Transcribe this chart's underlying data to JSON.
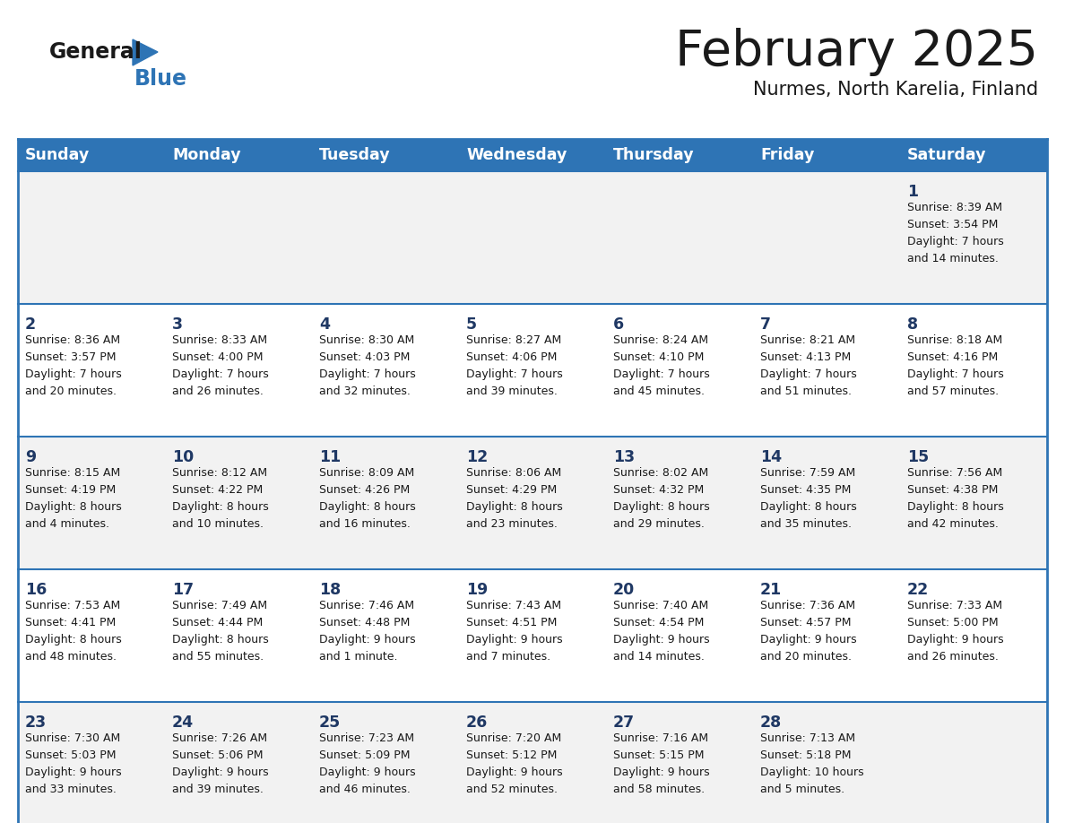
{
  "title": "February 2025",
  "subtitle": "Nurmes, North Karelia, Finland",
  "days_of_week": [
    "Sunday",
    "Monday",
    "Tuesday",
    "Wednesday",
    "Thursday",
    "Friday",
    "Saturday"
  ],
  "header_bg": "#2E74B5",
  "header_text": "#FFFFFF",
  "row_bg_even": "#F2F2F2",
  "row_bg_odd": "#FFFFFF",
  "cell_border": "#2E74B5",
  "day_number_color": "#1F3864",
  "info_text_color": "#1a1a1a",
  "logo_general_color": "#1a1a1a",
  "logo_blue_color": "#2E74B5",
  "calendar_data": [
    [
      null,
      null,
      null,
      null,
      null,
      null,
      {
        "day": 1,
        "sunrise": "8:39 AM",
        "sunset": "3:54 PM",
        "daylight": "7 hours",
        "daylight2": "and 14 minutes."
      }
    ],
    [
      {
        "day": 2,
        "sunrise": "8:36 AM",
        "sunset": "3:57 PM",
        "daylight": "7 hours",
        "daylight2": "and 20 minutes."
      },
      {
        "day": 3,
        "sunrise": "8:33 AM",
        "sunset": "4:00 PM",
        "daylight": "7 hours",
        "daylight2": "and 26 minutes."
      },
      {
        "day": 4,
        "sunrise": "8:30 AM",
        "sunset": "4:03 PM",
        "daylight": "7 hours",
        "daylight2": "and 32 minutes."
      },
      {
        "day": 5,
        "sunrise": "8:27 AM",
        "sunset": "4:06 PM",
        "daylight": "7 hours",
        "daylight2": "and 39 minutes."
      },
      {
        "day": 6,
        "sunrise": "8:24 AM",
        "sunset": "4:10 PM",
        "daylight": "7 hours",
        "daylight2": "and 45 minutes."
      },
      {
        "day": 7,
        "sunrise": "8:21 AM",
        "sunset": "4:13 PM",
        "daylight": "7 hours",
        "daylight2": "and 51 minutes."
      },
      {
        "day": 8,
        "sunrise": "8:18 AM",
        "sunset": "4:16 PM",
        "daylight": "7 hours",
        "daylight2": "and 57 minutes."
      }
    ],
    [
      {
        "day": 9,
        "sunrise": "8:15 AM",
        "sunset": "4:19 PM",
        "daylight": "8 hours",
        "daylight2": "and 4 minutes."
      },
      {
        "day": 10,
        "sunrise": "8:12 AM",
        "sunset": "4:22 PM",
        "daylight": "8 hours",
        "daylight2": "and 10 minutes."
      },
      {
        "day": 11,
        "sunrise": "8:09 AM",
        "sunset": "4:26 PM",
        "daylight": "8 hours",
        "daylight2": "and 16 minutes."
      },
      {
        "day": 12,
        "sunrise": "8:06 AM",
        "sunset": "4:29 PM",
        "daylight": "8 hours",
        "daylight2": "and 23 minutes."
      },
      {
        "day": 13,
        "sunrise": "8:02 AM",
        "sunset": "4:32 PM",
        "daylight": "8 hours",
        "daylight2": "and 29 minutes."
      },
      {
        "day": 14,
        "sunrise": "7:59 AM",
        "sunset": "4:35 PM",
        "daylight": "8 hours",
        "daylight2": "and 35 minutes."
      },
      {
        "day": 15,
        "sunrise": "7:56 AM",
        "sunset": "4:38 PM",
        "daylight": "8 hours",
        "daylight2": "and 42 minutes."
      }
    ],
    [
      {
        "day": 16,
        "sunrise": "7:53 AM",
        "sunset": "4:41 PM",
        "daylight": "8 hours",
        "daylight2": "and 48 minutes."
      },
      {
        "day": 17,
        "sunrise": "7:49 AM",
        "sunset": "4:44 PM",
        "daylight": "8 hours",
        "daylight2": "and 55 minutes."
      },
      {
        "day": 18,
        "sunrise": "7:46 AM",
        "sunset": "4:48 PM",
        "daylight": "9 hours",
        "daylight2": "and 1 minute."
      },
      {
        "day": 19,
        "sunrise": "7:43 AM",
        "sunset": "4:51 PM",
        "daylight": "9 hours",
        "daylight2": "and 7 minutes."
      },
      {
        "day": 20,
        "sunrise": "7:40 AM",
        "sunset": "4:54 PM",
        "daylight": "9 hours",
        "daylight2": "and 14 minutes."
      },
      {
        "day": 21,
        "sunrise": "7:36 AM",
        "sunset": "4:57 PM",
        "daylight": "9 hours",
        "daylight2": "and 20 minutes."
      },
      {
        "day": 22,
        "sunrise": "7:33 AM",
        "sunset": "5:00 PM",
        "daylight": "9 hours",
        "daylight2": "and 26 minutes."
      }
    ],
    [
      {
        "day": 23,
        "sunrise": "7:30 AM",
        "sunset": "5:03 PM",
        "daylight": "9 hours",
        "daylight2": "and 33 minutes."
      },
      {
        "day": 24,
        "sunrise": "7:26 AM",
        "sunset": "5:06 PM",
        "daylight": "9 hours",
        "daylight2": "and 39 minutes."
      },
      {
        "day": 25,
        "sunrise": "7:23 AM",
        "sunset": "5:09 PM",
        "daylight": "9 hours",
        "daylight2": "and 46 minutes."
      },
      {
        "day": 26,
        "sunrise": "7:20 AM",
        "sunset": "5:12 PM",
        "daylight": "9 hours",
        "daylight2": "and 52 minutes."
      },
      {
        "day": 27,
        "sunrise": "7:16 AM",
        "sunset": "5:15 PM",
        "daylight": "9 hours",
        "daylight2": "and 58 minutes."
      },
      {
        "day": 28,
        "sunrise": "7:13 AM",
        "sunset": "5:18 PM",
        "daylight": "10 hours",
        "daylight2": "and 5 minutes."
      },
      null
    ]
  ]
}
